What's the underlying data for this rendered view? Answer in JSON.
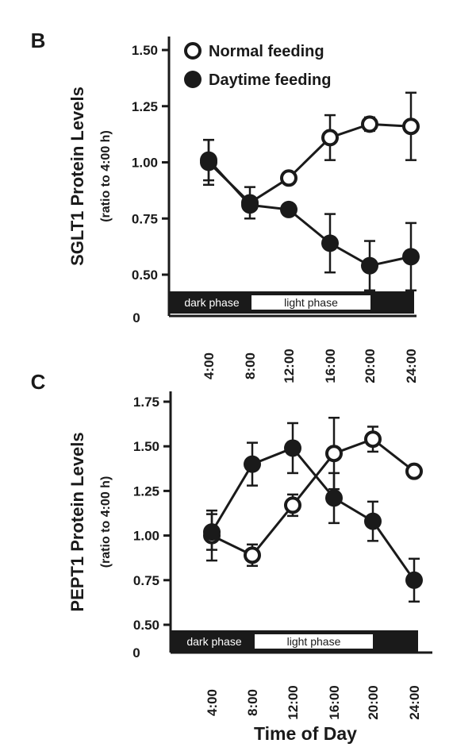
{
  "chart_data": [
    {
      "type": "line",
      "panel": "B",
      "ylabel": "SGLT1 Protein Levels",
      "ylabel_sub": "(ratio to 4:00 h)",
      "ylim": [
        0.4,
        1.55
      ],
      "yticks": [
        0.5,
        0.75,
        1.0,
        1.25,
        1.5
      ],
      "ytick_labels": [
        "0.50",
        "0.75",
        "1.00",
        "1.25",
        "1.50"
      ],
      "zero_label": "0",
      "categories": [
        "4:00",
        "8:00",
        "12:00",
        "16:00",
        "20:00",
        "24:00"
      ],
      "series": [
        {
          "name": "Normal feeding",
          "marker": "open",
          "values": [
            1.0,
            0.82,
            0.93,
            1.11,
            1.17,
            1.16
          ],
          "errors": [
            0.1,
            0.07,
            0.0,
            0.1,
            0.03,
            0.15
          ]
        },
        {
          "name": "Daytime feeding",
          "marker": "filled",
          "values": [
            1.01,
            0.81,
            0.79,
            0.64,
            0.54,
            0.58
          ],
          "errors": [
            0.09,
            0.0,
            0.0,
            0.13,
            0.11,
            0.15
          ]
        }
      ],
      "legend": {
        "position": "top",
        "entries": [
          "Normal feeding",
          "Daytime feeding"
        ]
      },
      "phase_bar": {
        "dark_label": "dark phase",
        "light_label": "light phase"
      }
    },
    {
      "type": "line",
      "panel": "C",
      "ylabel": "PEPT1 Protein Levels",
      "ylabel_sub": "(ratio to 4:00 h)",
      "ylim": [
        0.45,
        1.8
      ],
      "yticks": [
        0.5,
        0.75,
        1.0,
        1.25,
        1.5,
        1.75
      ],
      "ytick_labels": [
        "0.50",
        "0.75",
        "1.00",
        "1.25",
        "1.50",
        "1.75"
      ],
      "zero_label": "0",
      "categories": [
        "4:00",
        "8:00",
        "12:00",
        "16:00",
        "20:00",
        "24:00"
      ],
      "series": [
        {
          "name": "Normal feeding",
          "marker": "open",
          "values": [
            1.0,
            0.89,
            1.17,
            1.46,
            1.54,
            1.36
          ],
          "errors": [
            0.14,
            0.06,
            0.06,
            0.2,
            0.07,
            0.02
          ]
        },
        {
          "name": "Daytime feeding",
          "marker": "filled",
          "values": [
            1.02,
            1.4,
            1.49,
            1.21,
            1.08,
            0.75
          ],
          "errors": [
            0.1,
            0.12,
            0.14,
            0.14,
            0.11,
            0.12
          ]
        }
      ],
      "phase_bar": {
        "dark_label": "dark phase",
        "light_label": "light phase"
      }
    }
  ],
  "xlabel": "Time of Day"
}
